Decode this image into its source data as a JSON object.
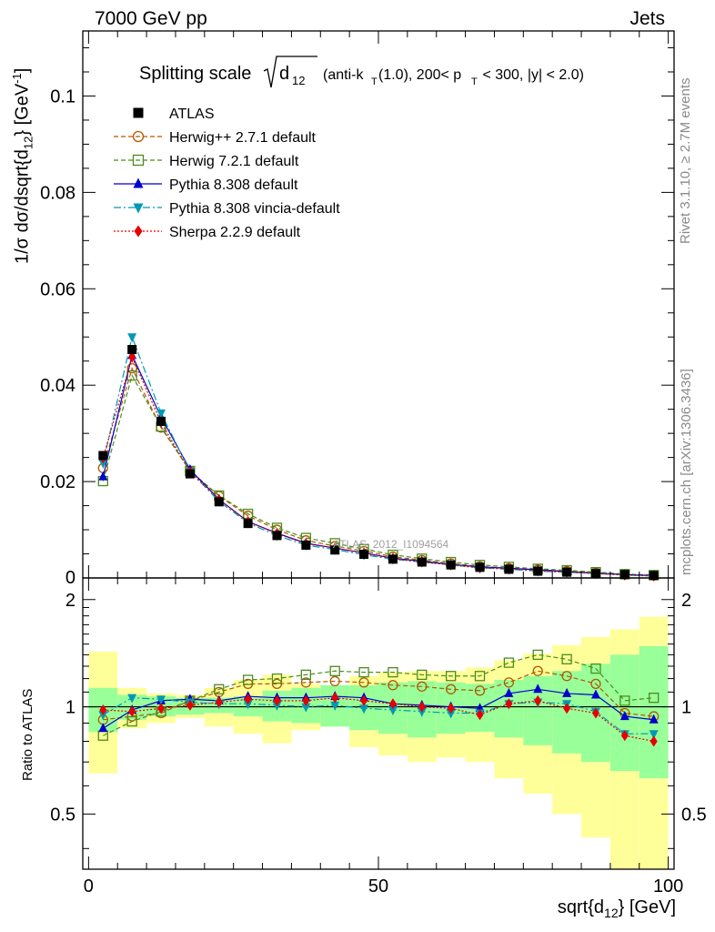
{
  "header": {
    "left": "7000 GeV pp",
    "right": "Jets"
  },
  "side_text": {
    "rivet": "Rivet 3.1.10, ≥ 2.7M events",
    "mcplots": "mcplots.cern.ch [arXiv:1306.3436]"
  },
  "chart_data": {
    "type": "line",
    "title": {
      "main": "Splitting scale",
      "sym": "d",
      "sym_sub": "12",
      "cut_a": "(anti-k",
      "cut_a_sub": "T",
      "cut_b": "(1.0), 200< p",
      "cut_b_sub": "T",
      "cut_c": " < 300, |y| < 2.0)"
    },
    "watermark": "ATLAS_2012_I1094564",
    "ylabel": {
      "a": "1/σ dσ/dsqrt{d",
      "a_sub": "12",
      "b": "} [GeV",
      "b_sup": "-1",
      "c": "]"
    },
    "xlabel": {
      "a": "sqrt{d",
      "a_sub": "12",
      "b": "} [GeV]"
    },
    "ratio_ylabel": "Ratio to ATLAS",
    "xlim": [
      -1,
      101
    ],
    "ylim": [
      0,
      0.1135
    ],
    "ratio_ylim": [
      0.35,
      2.3
    ],
    "x_ticks": [
      "0",
      "50",
      "100"
    ],
    "y_ticks": [
      "0",
      "0.02",
      "0.04",
      "0.06",
      "0.08",
      "0.1"
    ],
    "ratio_y_ticks": [
      "0.5",
      "1",
      "2"
    ],
    "legend_position": "top-left",
    "x": [
      2.5,
      7.5,
      12.5,
      17.5,
      22.5,
      27.5,
      32.5,
      37.5,
      42.5,
      47.5,
      52.5,
      57.5,
      62.5,
      67.5,
      72.5,
      77.5,
      82.5,
      87.5,
      92.5,
      97.5
    ],
    "data": {
      "name": "ATLAS",
      "values": [
        0.0254,
        0.0474,
        0.0325,
        0.0216,
        0.0158,
        0.0113,
        0.0088,
        0.0068,
        0.0058,
        0.0049,
        0.0039,
        0.0033,
        0.0027,
        0.0022,
        0.0018,
        0.0014,
        0.0012,
        0.0009,
        0.0007,
        0.0005
      ]
    },
    "series": [
      {
        "name": "Herwig++ 2.7.1 default",
        "color": "#b35900",
        "marker": "circle-open",
        "dash": "5,3",
        "values": [
          0.0228,
          0.0435,
          0.0312,
          0.0222,
          0.017,
          0.0129,
          0.01,
          0.0078,
          0.0066,
          0.0056,
          0.0044,
          0.0037,
          0.003,
          0.0024,
          0.002,
          0.0017,
          0.0014,
          0.0011,
          0.0007,
          0.0005
        ],
        "ratio": [
          0.92,
          0.94,
          0.96,
          1.04,
          1.1,
          1.16,
          1.16,
          1.17,
          1.18,
          1.17,
          1.15,
          1.14,
          1.12,
          1.11,
          1.17,
          1.26,
          1.22,
          1.16,
          0.96,
          0.94
        ]
      },
      {
        "name": "Herwig 7.2.1 default",
        "color": "#4c8c1a",
        "marker": "square-open",
        "dash": "5,3",
        "values": [
          0.0201,
          0.042,
          0.0314,
          0.0222,
          0.0171,
          0.0133,
          0.0104,
          0.0083,
          0.0072,
          0.006,
          0.0048,
          0.004,
          0.0033,
          0.0027,
          0.0023,
          0.0019,
          0.0016,
          0.0012,
          0.0008,
          0.0006
        ],
        "ratio": [
          0.83,
          0.91,
          0.97,
          1.04,
          1.12,
          1.19,
          1.2,
          1.23,
          1.26,
          1.25,
          1.25,
          1.23,
          1.22,
          1.22,
          1.33,
          1.4,
          1.36,
          1.28,
          1.04,
          1.06
        ]
      },
      {
        "name": "Pythia 8.308 default",
        "color": "#0000cc",
        "marker": "triangle-up",
        "dash": "",
        "values": [
          0.021,
          0.0462,
          0.0334,
          0.0225,
          0.0163,
          0.0117,
          0.0093,
          0.0072,
          0.0062,
          0.0052,
          0.0041,
          0.0035,
          0.0028,
          0.0023,
          0.002,
          0.0017,
          0.0013,
          0.001,
          0.0007,
          0.0005
        ],
        "ratio": [
          0.87,
          0.98,
          1.04,
          1.05,
          1.04,
          1.07,
          1.06,
          1.06,
          1.07,
          1.06,
          1.02,
          1.01,
          1.0,
          0.99,
          1.09,
          1.12,
          1.09,
          1.08,
          0.94,
          0.92
        ]
      },
      {
        "name": "Pythia 8.308 vincia-default",
        "color": "#0099b3",
        "marker": "triangle-down",
        "dash": "8,3,2,3",
        "values": [
          0.0239,
          0.05,
          0.0342,
          0.0221,
          0.0159,
          0.0114,
          0.0088,
          0.0068,
          0.0059,
          0.0048,
          0.0039,
          0.0033,
          0.0027,
          0.0021,
          0.0018,
          0.0014,
          0.0012,
          0.0009,
          0.0006,
          0.0004
        ],
        "ratio": [
          0.95,
          1.06,
          1.05,
          1.03,
          1.02,
          1.02,
          1.01,
          1.0,
          1.01,
          0.99,
          0.98,
          0.97,
          0.96,
          0.96,
          1.02,
          1.03,
          1.02,
          0.97,
          0.84,
          0.84
        ]
      },
      {
        "name": "Sherpa 2.2.9 default",
        "color": "#e60000",
        "marker": "diamond",
        "dash": "2,2",
        "values": [
          0.0249,
          0.0458,
          0.0323,
          0.022,
          0.0163,
          0.0117,
          0.0092,
          0.0071,
          0.0062,
          0.0051,
          0.004,
          0.0033,
          0.0027,
          0.0021,
          0.0019,
          0.0015,
          0.0012,
          0.0009,
          0.0006,
          0.0004
        ],
        "ratio": [
          0.98,
          0.97,
          0.99,
          1.01,
          1.03,
          1.05,
          1.04,
          1.04,
          1.06,
          1.04,
          1.02,
          1.0,
          0.99,
          0.95,
          1.02,
          1.04,
          0.99,
          0.96,
          0.83,
          0.8
        ]
      }
    ],
    "band_green": [
      [
        0.85,
        1.13
      ],
      [
        0.92,
        1.08
      ],
      [
        0.94,
        1.07
      ],
      [
        0.95,
        1.06
      ],
      [
        0.96,
        1.06
      ],
      [
        0.94,
        1.07
      ],
      [
        0.91,
        1.11
      ],
      [
        0.9,
        1.13
      ],
      [
        0.88,
        1.15
      ],
      [
        0.86,
        1.15
      ],
      [
        0.84,
        1.17
      ],
      [
        0.82,
        1.18
      ],
      [
        0.84,
        1.17
      ],
      [
        0.85,
        1.16
      ],
      [
        0.82,
        1.19
      ],
      [
        0.78,
        1.22
      ],
      [
        0.74,
        1.26
      ],
      [
        0.7,
        1.32
      ],
      [
        0.66,
        1.4
      ],
      [
        0.63,
        1.48
      ]
    ],
    "band_yellow": [
      [
        0.65,
        1.43
      ],
      [
        0.87,
        1.13
      ],
      [
        0.9,
        1.09
      ],
      [
        0.93,
        1.08
      ],
      [
        0.88,
        1.13
      ],
      [
        0.84,
        1.19
      ],
      [
        0.79,
        1.23
      ],
      [
        0.86,
        1.16
      ],
      [
        0.88,
        1.14
      ],
      [
        0.77,
        1.22
      ],
      [
        0.73,
        1.25
      ],
      [
        0.7,
        1.26
      ],
      [
        0.72,
        1.26
      ],
      [
        0.7,
        1.29
      ],
      [
        0.63,
        1.35
      ],
      [
        0.57,
        1.41
      ],
      [
        0.5,
        1.49
      ],
      [
        0.43,
        1.57
      ],
      [
        0.35,
        1.65
      ],
      [
        0.35,
        1.79
      ]
    ]
  }
}
